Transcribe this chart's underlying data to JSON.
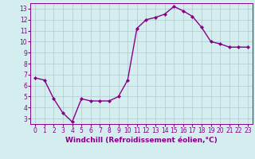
{
  "x": [
    0,
    1,
    2,
    3,
    4,
    5,
    6,
    7,
    8,
    9,
    10,
    11,
    12,
    13,
    14,
    15,
    16,
    17,
    18,
    19,
    20,
    21,
    22,
    23
  ],
  "y": [
    6.7,
    6.5,
    4.8,
    3.5,
    2.7,
    4.8,
    4.6,
    4.6,
    4.6,
    5.0,
    6.5,
    11.2,
    12.0,
    12.2,
    12.5,
    13.2,
    12.8,
    12.3,
    11.3,
    10.0,
    9.8,
    9.5,
    9.5,
    9.5
  ],
  "line_color": "#880088",
  "marker": "D",
  "marker_size": 2.0,
  "line_width": 1.0,
  "xlabel": "Windchill (Refroidissement éolien,°C)",
  "xlabel_fontsize": 6.5,
  "ylabel_ticks": [
    3,
    4,
    5,
    6,
    7,
    8,
    9,
    10,
    11,
    12,
    13
  ],
  "xtick_labels": [
    "0",
    "1",
    "2",
    "3",
    "4",
    "5",
    "6",
    "7",
    "8",
    "9",
    "10",
    "11",
    "12",
    "13",
    "14",
    "15",
    "16",
    "17",
    "18",
    "19",
    "20",
    "21",
    "22",
    "23"
  ],
  "xlim": [
    -0.5,
    23.5
  ],
  "ylim": [
    2.5,
    13.5
  ],
  "background_color": "#d4eef0",
  "grid_color": "#b0c8cc",
  "tick_color": "#880088",
  "tick_fontsize": 5.5,
  "spine_color": "#880088"
}
